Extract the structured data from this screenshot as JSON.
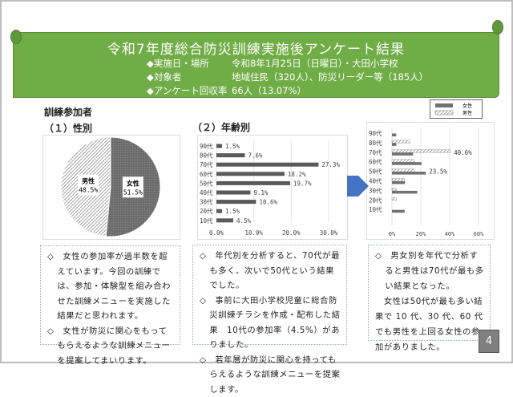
{
  "header": {
    "title": "令和7年度総合防災訓練実施後アンケート結果",
    "info": [
      {
        "label": "◆実施日・場所",
        "value": "令和8年1月25日（日曜日）・大田小学校"
      },
      {
        "label": "◆対象者",
        "value": "地域住民（320人）、防災リーダー等（185人）"
      },
      {
        "label": "◆アンケート回収率",
        "value": "66人（13.07%）"
      }
    ],
    "color": "#70ad47"
  },
  "section_title": "訓練参加者",
  "gender": {
    "heading": "（１）性別",
    "chart_data": {
      "type": "pie",
      "categories": [
        "女性",
        "男性"
      ],
      "values": [
        51.5,
        48.5
      ],
      "labels": [
        "51.5%",
        "48.5%"
      ]
    },
    "notes": [
      "◇　女性の参加率が過半数を超えています。今回の訓練では、参加・体験型を組み合わせた訓練メニューを実施した結果だと思われます。",
      "◇　女性が防災に関心をもってもらえるような訓練メニューを提案してまいります。"
    ]
  },
  "age": {
    "heading": "（２）年齢別",
    "chart_data": {
      "type": "bar",
      "orientation": "horizontal",
      "categories": [
        "90代",
        "80代",
        "70代",
        "60代",
        "50代",
        "40代",
        "30代",
        "20代",
        "10代"
      ],
      "values": [
        1.5,
        7.6,
        27.3,
        18.2,
        19.7,
        9.1,
        10.6,
        1.5,
        4.5
      ],
      "labels": [
        "1.5%",
        "7.6%",
        "27.3%",
        "18.2%",
        "19.7%",
        "9.1%",
        "10.6%",
        "1.5%",
        "4.5%"
      ],
      "xlim": [
        0,
        30
      ],
      "xticks": [
        "0.0%",
        "10.0%",
        "20.0%",
        "30.0%"
      ],
      "grid": true
    },
    "notes": [
      "◇　年代別を分析すると、70代が最も多く、次いで50代という結果でした。",
      "◇　事前に大田小学校児童に総合防災訓練チラシを作成・配布した結果　10代の参加率（4.5%）がありました。",
      "◇　若年層が防災に関心を持ってもらえるような訓練メニューを提案します。"
    ]
  },
  "gender_age": {
    "chart_data": {
      "type": "bar",
      "orientation": "horizontal",
      "categories": [
        "90代",
        "80代",
        "70代",
        "60代",
        "50代",
        "40代",
        "30代",
        "20代",
        "10代"
      ],
      "series": [
        {
          "name": "女性",
          "values": [
            3,
            3,
            14.6,
            20.5,
            23.5,
            9,
            17.6,
            0,
            8.8
          ]
        },
        {
          "name": "男性",
          "values": [
            0,
            12.4,
            40.6,
            15.4,
            15.4,
            8.7,
            3,
            3,
            0
          ]
        }
      ],
      "data_labels": [
        {
          "category": "70代",
          "series": "男性",
          "text": "40.6%"
        },
        {
          "category": "50代",
          "series": "女性",
          "text": "23.5%"
        }
      ],
      "xlim": [
        0,
        60
      ],
      "xticks": [
        "0%",
        "20%",
        "40%",
        "60%"
      ],
      "grid": true,
      "legend": "top-right"
    },
    "notes": [
      "◇　男女別を年代で分析すると男性は70代が最も多い結果となった。",
      "　女性は50代が最も多い結果で 10 代、30 代、60 代でも男性を上回る女性の参加がありました。"
    ]
  },
  "arrow_color": "#4472c4",
  "page_number": "4"
}
